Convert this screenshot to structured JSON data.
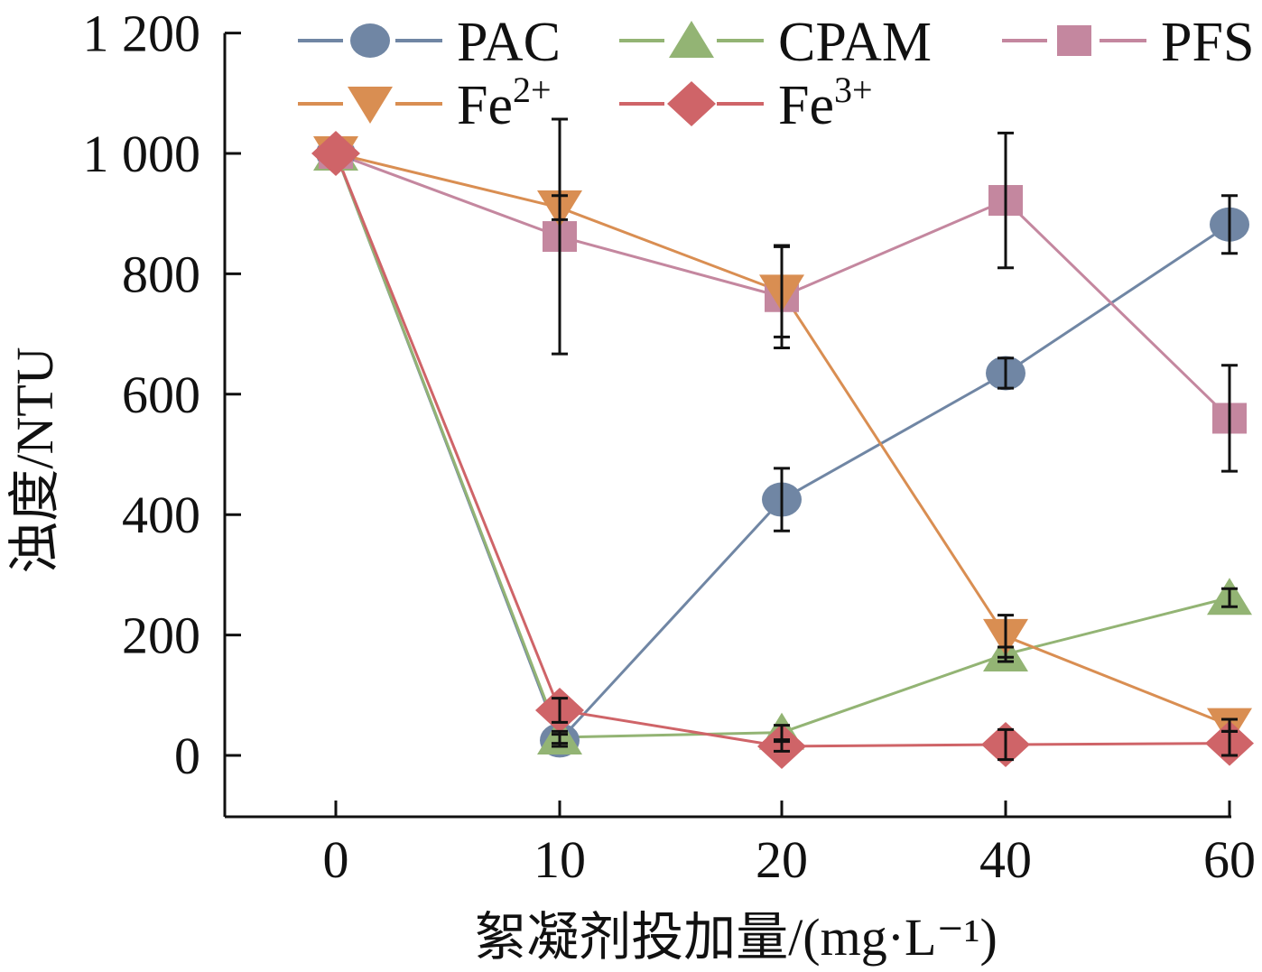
{
  "chart_data": {
    "type": "line",
    "title": "",
    "xlabel": "絮凝剂投加量/(mg·L⁻¹)",
    "ylabel": "浊度/NTU",
    "x_type": "categorical",
    "categories": [
      "0",
      "10",
      "20",
      "40",
      "60"
    ],
    "y_ticks": [
      0,
      200,
      400,
      600,
      800,
      1000,
      1200
    ],
    "y_tick_labels": [
      "0",
      "200",
      "400",
      "600",
      "800",
      "1 000",
      "1 200"
    ],
    "ylim": [
      -100,
      1200
    ],
    "grid": false,
    "legend_position": "top",
    "series": [
      {
        "name": "PAC",
        "legend_label": "PAC",
        "superscript": "",
        "marker": "circle",
        "color": "#7086a4",
        "values": [
          1000,
          25,
          425,
          635,
          882
        ],
        "errors": [
          0,
          10,
          52,
          25,
          48
        ]
      },
      {
        "name": "CPAM",
        "legend_label": "CPAM",
        "superscript": "",
        "marker": "triangle-up",
        "color": "#93b474",
        "values": [
          1000,
          30,
          38,
          168,
          262
        ],
        "errors": [
          0,
          10,
          12,
          12,
          15
        ]
      },
      {
        "name": "PFS",
        "legend_label": "PFS",
        "superscript": "",
        "marker": "square",
        "color": "#c4879f",
        "values": [
          1000,
          862,
          762,
          922,
          560
        ],
        "errors": [
          0,
          195,
          85,
          112,
          88
        ]
      },
      {
        "name": "Fe2+",
        "legend_label": "Fe",
        "superscript": "2+",
        "marker": "triangle-down",
        "color": "#d98e52",
        "values": [
          1000,
          910,
          770,
          198,
          50
        ],
        "errors": [
          0,
          20,
          75,
          35,
          10
        ]
      },
      {
        "name": "Fe3+",
        "legend_label": "Fe",
        "superscript": "3+",
        "marker": "diamond",
        "color": "#cf6468",
        "values": [
          1000,
          75,
          15,
          18,
          20
        ],
        "errors": [
          0,
          20,
          8,
          25,
          20
        ]
      }
    ]
  }
}
